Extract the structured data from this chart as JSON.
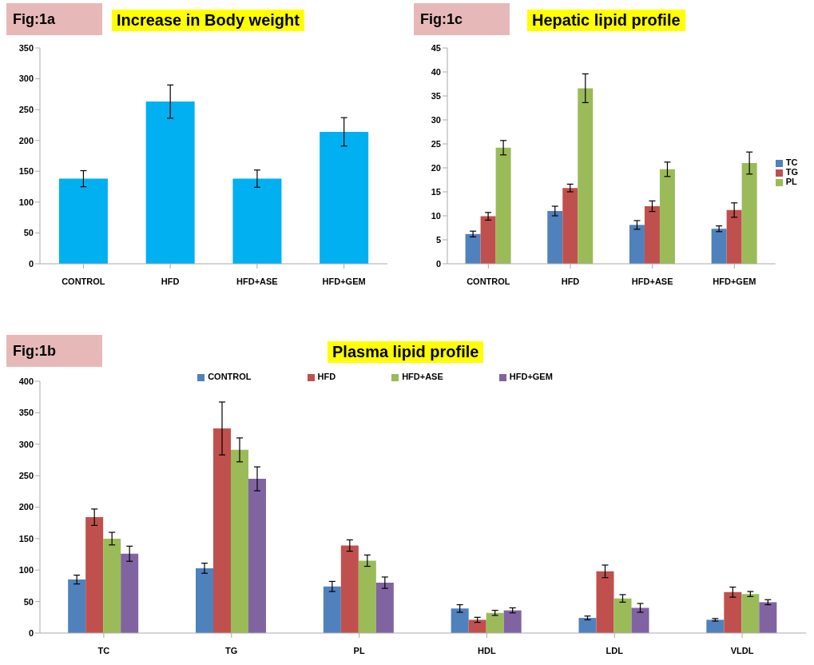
{
  "chart_data": [
    {
      "type": "bar",
      "title": "Increase in Body weight",
      "annotations": [
        "Fig:1a"
      ],
      "categories": [
        "CONTROL",
        "HFD",
        "HFD+ASE",
        "HFD+GEM"
      ],
      "values": [
        138,
        263,
        138,
        214
      ],
      "errors": [
        13,
        27,
        14,
        23
      ],
      "color": "#00b0f0",
      "ylim": [
        0,
        350
      ],
      "yticks": [
        0,
        50,
        100,
        150,
        200,
        250,
        300,
        350
      ],
      "legend": false
    },
    {
      "type": "bar",
      "title": "Hepatic lipid profile",
      "annotations": [
        "Fig:1c"
      ],
      "categories": [
        "CONTROL",
        "HFD",
        "HFD+ASE",
        "HFD+GEM"
      ],
      "legend": "right",
      "series": [
        {
          "name": "TC",
          "color": "#4f81bd",
          "values": [
            6.2,
            11,
            8.1,
            7.3
          ],
          "errors": [
            0.6,
            1,
            0.9,
            0.6
          ]
        },
        {
          "name": "TG",
          "color": "#c0504d",
          "values": [
            9.9,
            15.8,
            12,
            11.2
          ],
          "errors": [
            0.8,
            0.8,
            1.1,
            1.5
          ]
        },
        {
          "name": "PL",
          "color": "#9bbb59",
          "values": [
            24.2,
            36.6,
            19.7,
            21
          ],
          "errors": [
            1.5,
            3,
            1.5,
            2.3
          ]
        }
      ],
      "ylim": [
        0,
        45
      ],
      "yticks": [
        0,
        5,
        10,
        15,
        20,
        25,
        30,
        35,
        40,
        45
      ]
    },
    {
      "type": "bar",
      "title": "Plasma lipid profile",
      "annotations": [
        "Fig:1b"
      ],
      "categories": [
        "TC",
        "TG",
        "PL",
        "HDL",
        "LDL",
        "VLDL"
      ],
      "legend": "top",
      "series": [
        {
          "name": "CONTROL",
          "color": "#4f81bd",
          "values": [
            85,
            103,
            74,
            39,
            24,
            21
          ],
          "errors": [
            7,
            8,
            8,
            6,
            3,
            2
          ]
        },
        {
          "name": "HFD",
          "color": "#c0504d",
          "values": [
            184,
            325,
            139,
            21,
            98,
            65
          ],
          "errors": [
            13,
            42,
            9,
            4,
            10,
            8
          ]
        },
        {
          "name": "HFD+ASE",
          "color": "#9bbb59",
          "values": [
            150,
            291,
            115,
            32,
            55,
            62
          ],
          "errors": [
            10,
            19,
            9,
            4,
            6,
            4
          ]
        },
        {
          "name": "HFD+GEM",
          "color": "#8064a2",
          "values": [
            126,
            245,
            80,
            36,
            40,
            49
          ],
          "errors": [
            12,
            19,
            9,
            4,
            7,
            4
          ]
        }
      ],
      "ylim": [
        0,
        400
      ],
      "yticks": [
        0,
        50,
        100,
        150,
        200,
        250,
        300,
        350,
        400
      ]
    }
  ]
}
